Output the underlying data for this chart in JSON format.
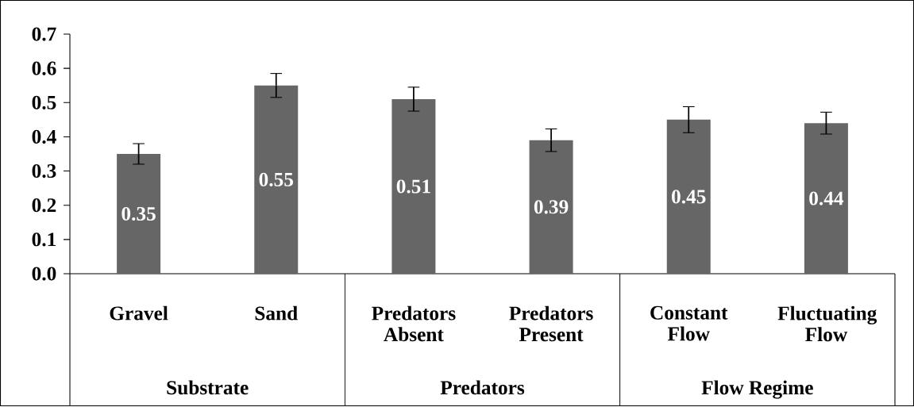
{
  "chart_data": {
    "type": "bar",
    "categories": [
      "Gravel",
      "Sand",
      "Predators Absent",
      "Predators Present",
      "Constant Flow",
      "Fluctuating Flow"
    ],
    "values": [
      0.35,
      0.55,
      0.51,
      0.39,
      0.45,
      0.44
    ],
    "errors": [
      0.03,
      0.035,
      0.035,
      0.033,
      0.038,
      0.032
    ],
    "value_labels": [
      "0.35",
      "0.55",
      "0.51",
      "0.39",
      "0.45",
      "0.44"
    ],
    "color": "#666666",
    "ylim": [
      0,
      0.7
    ],
    "yticks": [
      {
        "value": 0,
        "label": "0.0"
      },
      0.1,
      0.2,
      0.3,
      0.4,
      0.5,
      0.6,
      0.7
    ],
    "annotations": [
      "Substrate",
      "Predators",
      "Flow Regime"
    ],
    "grid": false
  }
}
